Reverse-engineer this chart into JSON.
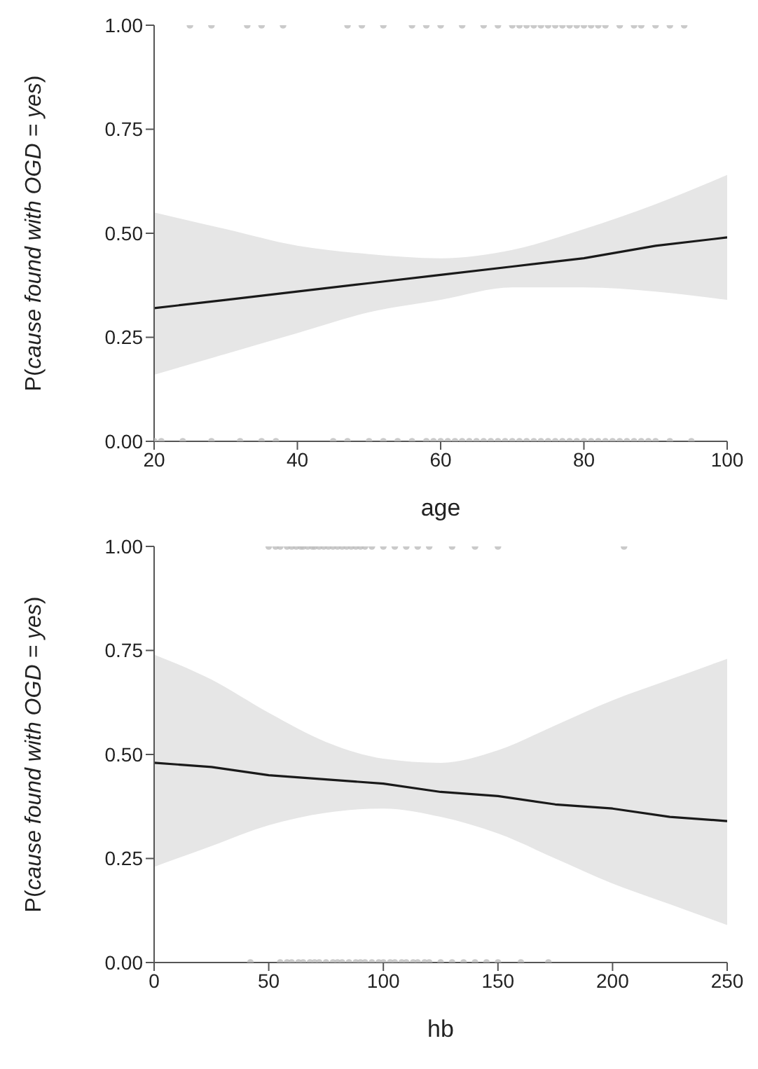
{
  "chart_data": [
    {
      "type": "line",
      "xlabel": "age",
      "ylabel": "P(cause found with OGD = yes)",
      "xlim": [
        20,
        100
      ],
      "xticks": [
        20,
        40,
        60,
        80,
        100
      ],
      "ylim": [
        0,
        1
      ],
      "yticks": [
        {
          "value": 0,
          "label": "0.00"
        },
        {
          "value": 0.25,
          "label": "0.25"
        },
        {
          "value": 0.5,
          "label": "0.50"
        },
        {
          "value": 0.75,
          "label": "0.75"
        },
        {
          "value": 1,
          "label": "1.00"
        }
      ],
      "grid": false,
      "marker": "circle",
      "line_style": "solid",
      "series": [
        {
          "type": "scatter",
          "color": "#bdbdbd",
          "x": [
            25,
            28,
            33,
            35,
            38,
            47,
            49,
            52,
            56,
            58,
            60,
            63,
            66,
            68,
            70,
            71,
            72,
            73,
            74,
            75,
            76,
            77,
            78,
            79,
            80,
            81,
            82,
            83,
            85,
            87,
            88,
            90,
            92,
            94
          ],
          "values": [
            1,
            1,
            1,
            1,
            1,
            1,
            1,
            1,
            1,
            1,
            1,
            1,
            1,
            1,
            1,
            1,
            1,
            1,
            1,
            1,
            1,
            1,
            1,
            1,
            1,
            1,
            1,
            1,
            1,
            1,
            1,
            1,
            1,
            1
          ]
        },
        {
          "type": "scatter",
          "color": "#bdbdbd",
          "x": [
            20,
            21,
            24,
            28,
            32,
            35,
            37,
            45,
            47,
            50,
            52,
            54,
            56,
            58,
            59,
            60,
            61,
            62,
            63,
            64,
            65,
            66,
            67,
            68,
            69,
            70,
            71,
            72,
            73,
            74,
            75,
            76,
            77,
            78,
            79,
            80,
            81,
            82,
            83,
            84,
            85,
            86,
            87,
            88,
            89,
            90,
            92,
            95
          ],
          "values": [
            0,
            0,
            0,
            0,
            0,
            0,
            0,
            0,
            0,
            0,
            0,
            0,
            0,
            0,
            0,
            0,
            0,
            0,
            0,
            0,
            0,
            0,
            0,
            0,
            0,
            0,
            0,
            0,
            0,
            0,
            0,
            0,
            0,
            0,
            0,
            0,
            0,
            0,
            0,
            0,
            0,
            0,
            0,
            0,
            0,
            0,
            0,
            0
          ]
        },
        {
          "marker": "none",
          "color": "#1a1a1a",
          "x": [
            20,
            30,
            40,
            50,
            60,
            70,
            80,
            90,
            100
          ],
          "values": [
            0.32,
            0.34,
            0.36,
            0.38,
            0.4,
            0.42,
            0.44,
            0.47,
            0.49
          ],
          "lower": [
            0.16,
            0.21,
            0.26,
            0.31,
            0.34,
            0.37,
            0.37,
            0.36,
            0.34
          ],
          "upper": [
            0.55,
            0.51,
            0.47,
            0.45,
            0.44,
            0.46,
            0.51,
            0.57,
            0.64
          ]
        }
      ]
    },
    {
      "type": "line",
      "xlabel": "hb",
      "ylabel": "P(cause found with OGD = yes)",
      "xlim": [
        0,
        250
      ],
      "xticks": [
        0,
        50,
        100,
        150,
        200,
        250
      ],
      "ylim": [
        0,
        1
      ],
      "yticks": [
        {
          "value": 0,
          "label": "0.00"
        },
        {
          "value": 0.25,
          "label": "0.25"
        },
        {
          "value": 0.5,
          "label": "0.50"
        },
        {
          "value": 0.75,
          "label": "0.75"
        },
        {
          "value": 1,
          "label": "1.00"
        }
      ],
      "grid": false,
      "marker": "circle",
      "line_style": "solid",
      "series": [
        {
          "type": "scatter",
          "color": "#bdbdbd",
          "x": [
            50,
            53,
            55,
            58,
            60,
            62,
            64,
            65,
            67,
            69,
            70,
            72,
            74,
            76,
            78,
            80,
            82,
            84,
            86,
            88,
            90,
            92,
            95,
            100,
            105,
            110,
            115,
            120,
            130,
            140,
            150,
            205
          ],
          "values": [
            1,
            1,
            1,
            1,
            1,
            1,
            1,
            1,
            1,
            1,
            1,
            1,
            1,
            1,
            1,
            1,
            1,
            1,
            1,
            1,
            1,
            1,
            1,
            1,
            1,
            1,
            1,
            1,
            1,
            1,
            1,
            1
          ]
        },
        {
          "type": "scatter",
          "color": "#bdbdbd",
          "x": [
            42,
            55,
            58,
            60,
            63,
            65,
            68,
            70,
            72,
            75,
            78,
            80,
            82,
            85,
            88,
            90,
            92,
            95,
            98,
            100,
            103,
            105,
            108,
            110,
            113,
            115,
            118,
            120,
            125,
            130,
            135,
            140,
            145,
            150,
            160,
            172
          ],
          "values": [
            0,
            0,
            0,
            0,
            0,
            0,
            0,
            0,
            0,
            0,
            0,
            0,
            0,
            0,
            0,
            0,
            0,
            0,
            0,
            0,
            0,
            0,
            0,
            0,
            0,
            0,
            0,
            0,
            0,
            0,
            0,
            0,
            0,
            0,
            0,
            0
          ]
        },
        {
          "marker": "none",
          "color": "#1a1a1a",
          "x": [
            0,
            25,
            50,
            75,
            100,
            125,
            150,
            175,
            200,
            225,
            250
          ],
          "values": [
            0.48,
            0.47,
            0.45,
            0.44,
            0.43,
            0.41,
            0.4,
            0.38,
            0.37,
            0.35,
            0.34
          ],
          "lower": [
            0.23,
            0.28,
            0.33,
            0.36,
            0.37,
            0.35,
            0.31,
            0.25,
            0.19,
            0.14,
            0.09
          ],
          "upper": [
            0.74,
            0.68,
            0.6,
            0.53,
            0.49,
            0.48,
            0.51,
            0.57,
            0.63,
            0.68,
            0.73
          ]
        }
      ]
    }
  ]
}
